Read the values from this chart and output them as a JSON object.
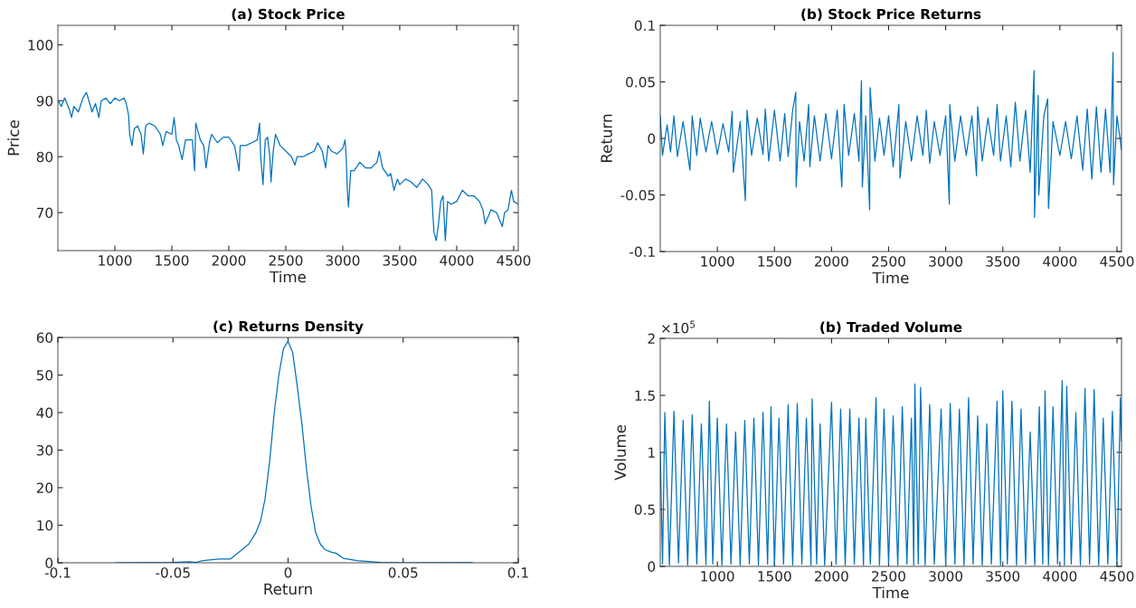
{
  "chart_data": [
    {
      "type": "line",
      "title": "(a) Stock Price",
      "xlabel": "Time",
      "ylabel": "Price",
      "color": "#0072bd",
      "xlim": [
        500,
        4540
      ],
      "ylim": [
        63.2,
        103.5
      ],
      "xticks": [
        1000,
        1500,
        2000,
        2500,
        3000,
        3500,
        4000,
        4500
      ],
      "yticks": [
        70,
        80,
        90,
        100
      ],
      "grid": false,
      "x": [
        500,
        530,
        560,
        600,
        620,
        640,
        680,
        720,
        750,
        780,
        800,
        830,
        860,
        880,
        920,
        960,
        1000,
        1040,
        1080,
        1100,
        1120,
        1130,
        1150,
        1170,
        1200,
        1230,
        1250,
        1270,
        1300,
        1350,
        1400,
        1420,
        1450,
        1500,
        1520,
        1540,
        1560,
        1590,
        1620,
        1680,
        1700,
        1710,
        1750,
        1780,
        1800,
        1830,
        1850,
        1900,
        1950,
        2000,
        2050,
        2090,
        2100,
        2150,
        2200,
        2250,
        2270,
        2280,
        2300,
        2320,
        2340,
        2360,
        2370,
        2390,
        2410,
        2450,
        2500,
        2550,
        2580,
        2600,
        2650,
        2700,
        2750,
        2780,
        2820,
        2850,
        2870,
        2900,
        2950,
        3000,
        3020,
        3030,
        3040,
        3050,
        3070,
        3100,
        3150,
        3200,
        3250,
        3300,
        3320,
        3350,
        3400,
        3420,
        3450,
        3480,
        3500,
        3550,
        3600,
        3650,
        3700,
        3750,
        3780,
        3790,
        3800,
        3820,
        3840,
        3860,
        3880,
        3900,
        3920,
        3950,
        4000,
        4050,
        4100,
        4150,
        4200,
        4230,
        4250,
        4300,
        4350,
        4400,
        4420,
        4450,
        4480,
        4500,
        4540
      ],
      "values": [
        90,
        89,
        90.5,
        88.5,
        87,
        89,
        88,
        90.5,
        91.5,
        89.5,
        88,
        89.5,
        87,
        90,
        90.5,
        89.5,
        90.5,
        90,
        90.5,
        89.5,
        87.5,
        84,
        82,
        85,
        85.5,
        84,
        80.5,
        85.5,
        86,
        85.5,
        84,
        82,
        84.5,
        84,
        87,
        83,
        82,
        79.5,
        83,
        83,
        77.5,
        86,
        83,
        82,
        78,
        82.5,
        84,
        82.5,
        83.5,
        83.5,
        82,
        77.5,
        82,
        82,
        82.5,
        83,
        86,
        80,
        75,
        83,
        83.5,
        80,
        75.5,
        81,
        84,
        82,
        81,
        80,
        78.5,
        80,
        80,
        80.5,
        81,
        82.5,
        81,
        78,
        82,
        81,
        80.5,
        81.5,
        83,
        80,
        74,
        71,
        77.5,
        77.5,
        79,
        78,
        78,
        79,
        81,
        78,
        76.5,
        77,
        74,
        76,
        75,
        76,
        75.5,
        74.5,
        76,
        75,
        74,
        70,
        66.5,
        65,
        68,
        72,
        73,
        65,
        72,
        71.5,
        72,
        74,
        73,
        73,
        72,
        70.5,
        68,
        70.5,
        70,
        67.5,
        70,
        70.5,
        74,
        72,
        71.5
      ]
    },
    {
      "type": "line",
      "title": "(b) Stock Price Returns",
      "xlabel": "Time",
      "ylabel": "Return",
      "color": "#0072bd",
      "xlim": [
        500,
        4540
      ],
      "ylim": [
        -0.1,
        0.1
      ],
      "xticks": [
        1000,
        1500,
        2000,
        2500,
        3000,
        3500,
        4000,
        4500
      ],
      "yticks": [
        -0.1,
        -0.05,
        0,
        0.05,
        0.1
      ],
      "grid": false,
      "x": [
        500,
        520,
        560,
        590,
        620,
        650,
        700,
        760,
        780,
        820,
        850,
        900,
        950,
        1000,
        1050,
        1100,
        1130,
        1140,
        1200,
        1245,
        1260,
        1300,
        1350,
        1400,
        1420,
        1450,
        1500,
        1550,
        1590,
        1620,
        1660,
        1687,
        1690,
        1720,
        1760,
        1800,
        1810,
        1850,
        1900,
        1950,
        2000,
        2050,
        2090,
        2110,
        2150,
        2200,
        2240,
        2262,
        2270,
        2300,
        2334,
        2338,
        2380,
        2420,
        2460,
        2500,
        2540,
        2590,
        2600,
        2650,
        2700,
        2750,
        2800,
        2830,
        2860,
        2900,
        2950,
        3000,
        3032,
        3036,
        3080,
        3130,
        3180,
        3230,
        3270,
        3280,
        3320,
        3370,
        3420,
        3450,
        3480,
        3530,
        3570,
        3610,
        3650,
        3700,
        3740,
        3774,
        3778,
        3810,
        3815,
        3860,
        3893,
        3900,
        3940,
        4000,
        4050,
        4100,
        4150,
        4200,
        4240,
        4280,
        4320,
        4360,
        4400,
        4440,
        4466,
        4470,
        4500,
        4540
      ],
      "values": [
        0.02,
        -0.015,
        0.012,
        -0.012,
        0.02,
        -0.016,
        0.015,
        -0.028,
        0.02,
        -0.015,
        0.018,
        -0.012,
        0.015,
        -0.014,
        0.013,
        -0.012,
        0.024,
        -0.03,
        0.015,
        -0.055,
        0.025,
        -0.015,
        0.018,
        -0.014,
        0.026,
        -0.02,
        0.025,
        -0.02,
        0.022,
        -0.016,
        0.025,
        0.041,
        -0.043,
        0.015,
        -0.02,
        0.03,
        -0.025,
        0.02,
        -0.02,
        0.022,
        -0.018,
        0.025,
        -0.043,
        0.03,
        -0.015,
        0.022,
        -0.02,
        0.051,
        -0.043,
        0.02,
        -0.063,
        0.045,
        -0.02,
        0.018,
        -0.015,
        0.02,
        -0.025,
        0.03,
        -0.035,
        0.015,
        -0.02,
        0.02,
        -0.015,
        0.025,
        -0.022,
        0.015,
        -0.015,
        0.02,
        -0.058,
        0.03,
        -0.02,
        0.02,
        -0.015,
        0.02,
        -0.033,
        0.028,
        -0.02,
        0.018,
        -0.015,
        0.03,
        -0.02,
        0.02,
        -0.025,
        0.032,
        -0.02,
        0.025,
        -0.03,
        0.06,
        -0.07,
        0.038,
        -0.05,
        0.02,
        0.035,
        -0.062,
        0.015,
        -0.015,
        0.015,
        -0.018,
        0.02,
        -0.028,
        0.026,
        -0.036,
        0.028,
        -0.03,
        0.026,
        -0.03,
        0.076,
        -0.041,
        0.02,
        -0.01
      ]
    },
    {
      "type": "line",
      "title": "(c) Returns Density",
      "xlabel": "Return",
      "color": "#0072bd",
      "xlim": [
        -0.1,
        0.1
      ],
      "ylim": [
        0,
        60
      ],
      "xticks": [
        -0.1,
        -0.05,
        0,
        0.05,
        0.1
      ],
      "yticks": [
        0,
        10,
        20,
        30,
        40,
        50,
        60
      ],
      "grid": false,
      "x": [
        -0.075,
        -0.05,
        -0.043,
        -0.04,
        -0.037,
        -0.03,
        -0.025,
        -0.02,
        -0.017,
        -0.014,
        -0.012,
        -0.01,
        -0.008,
        -0.006,
        -0.004,
        -0.002,
        0,
        0.002,
        0.004,
        0.006,
        0.008,
        0.01,
        0.012,
        0.014,
        0.016,
        0.019,
        0.021,
        0.024,
        0.03,
        0.04,
        0.05,
        0.08
      ],
      "values": [
        0,
        0.1,
        0.3,
        0.1,
        0.6,
        1.0,
        1.0,
        3.5,
        5,
        8,
        11,
        17,
        27,
        40,
        50,
        57,
        59,
        56,
        47,
        37,
        25,
        15,
        8,
        5,
        3.5,
        2.8,
        2.5,
        1.2,
        0.6,
        0.1,
        0,
        0
      ]
    },
    {
      "type": "line",
      "title": "(b) Traded Volume",
      "xlabel": "Time",
      "ylabel": "Volume",
      "color": "#0072bd",
      "xlim": [
        500,
        4540
      ],
      "ylim": [
        0,
        2
      ],
      "xticks": [
        1000,
        1500,
        2000,
        2500,
        3000,
        3500,
        4000,
        4500
      ],
      "yticks": [
        0,
        0.5,
        1,
        1.5,
        2
      ],
      "grid": false,
      "annotations": [
        "×10$^{5}$"
      ],
      "x": [
        500,
        520,
        540,
        580,
        620,
        660,
        700,
        740,
        780,
        820,
        860,
        900,
        930,
        960,
        1000,
        1040,
        1080,
        1120,
        1160,
        1200,
        1240,
        1280,
        1320,
        1360,
        1400,
        1440,
        1470,
        1500,
        1540,
        1580,
        1620,
        1660,
        1700,
        1740,
        1780,
        1820,
        1830,
        1870,
        1900,
        1940,
        2000,
        2040,
        2080,
        2120,
        2160,
        2200,
        2240,
        2280,
        2300,
        2340,
        2390,
        2420,
        2460,
        2500,
        2540,
        2580,
        2620,
        2660,
        2700,
        2720,
        2730,
        2760,
        2780,
        2820,
        2860,
        2900,
        2960,
        3000,
        3040,
        3080,
        3120,
        3160,
        3200,
        3240,
        3280,
        3320,
        3360,
        3400,
        3450,
        3480,
        3500,
        3540,
        3580,
        3620,
        3660,
        3700,
        3740,
        3780,
        3820,
        3850,
        3870,
        3900,
        3940,
        3980,
        4020,
        4040,
        4060,
        4100,
        4140,
        4180,
        4220,
        4260,
        4300,
        4340,
        4380,
        4420,
        4460,
        4500,
        4530,
        4540
      ],
      "values": [
        1.0,
        0.02,
        1.35,
        0.01,
        1.36,
        0.03,
        1.28,
        0.01,
        1.33,
        0.02,
        1.25,
        0.015,
        1.45,
        0.02,
        1.3,
        0.01,
        1.25,
        0.02,
        1.18,
        0.01,
        1.28,
        0.02,
        1.3,
        0.01,
        1.35,
        0.02,
        1.4,
        0.01,
        1.3,
        0.02,
        1.42,
        0.01,
        1.43,
        0.02,
        1.3,
        0.01,
        1.47,
        0.02,
        1.25,
        0.01,
        1.44,
        0.02,
        1.38,
        0.01,
        1.38,
        0.02,
        1.3,
        0.01,
        1.3,
        0.02,
        1.48,
        0.01,
        1.38,
        0.02,
        1.32,
        0.01,
        1.4,
        0.02,
        1.3,
        0.01,
        1.6,
        0.02,
        1.57,
        0.01,
        1.42,
        0.02,
        1.38,
        0.01,
        1.43,
        0.02,
        1.38,
        0.01,
        1.48,
        0.02,
        1.32,
        0.01,
        1.25,
        0.02,
        1.45,
        0.01,
        1.54,
        0.02,
        1.45,
        0.01,
        1.38,
        0.02,
        1.18,
        0.01,
        1.4,
        0.02,
        1.54,
        0.01,
        1.4,
        0.02,
        1.63,
        0.01,
        1.58,
        0.02,
        1.35,
        0.01,
        1.56,
        0.02,
        1.55,
        0.01,
        1.3,
        0.02,
        1.36,
        0.01,
        1.48,
        1.1
      ]
    }
  ]
}
